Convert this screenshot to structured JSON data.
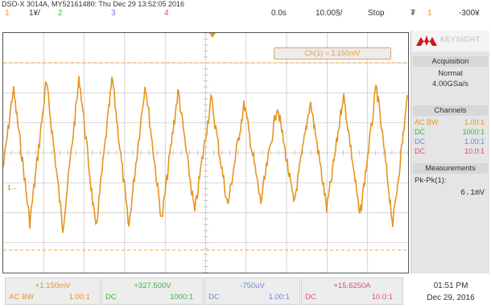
{
  "header": {
    "device_line": "DSO-X 3014A, MY52161480: Thu Dec 29 13:52:05 2016",
    "channel_numbers": [
      "1",
      "2",
      "3",
      "4"
    ],
    "ch1_scale": "1¥/",
    "time_offset": "0.0s",
    "time_scale": "10.00§/",
    "run_state": "Stop",
    "trigger_icon": "₮",
    "trigger_channel": "1",
    "trigger_level": "-300¥"
  },
  "screen": {
    "cursor_label": "Ch(1) = 1.150mV",
    "channel_marker": "1→"
  },
  "panel": {
    "brand": "KEYSIGHT",
    "acquisition_title": "Acquisition",
    "acquisition_mode": "Normal",
    "sample_rate": "4.00GSa/s",
    "channels_title": "Channels",
    "channels": [
      {
        "coupling": "AC BW",
        "probe": "1.00:1",
        "color": "#e6941e"
      },
      {
        "coupling": "DC",
        "probe": "1000:1",
        "color": "#3fb53f"
      },
      {
        "coupling": "DC",
        "probe": "1.00:1",
        "color": "#6f86d6"
      },
      {
        "coupling": "DC",
        "probe": "10.0:1",
        "color": "#d94a8a"
      }
    ],
    "measurements_title": "Measurements",
    "meas_label": "Pk-Pk(1):",
    "meas_value": "6.1mV"
  },
  "bottom": {
    "channels": [
      {
        "value": "+1.150mV",
        "coupling": "AC BW",
        "probe": "1.00:1",
        "color": "#e6941e"
      },
      {
        "value": "+327.500V",
        "coupling": "DC",
        "probe": "1000:1",
        "color": "#3fb53f"
      },
      {
        "value": "-750uV",
        "coupling": "DC",
        "probe": "1.00:1",
        "color": "#6f86d6"
      },
      {
        "value": "+15.6250A",
        "coupling": "DC",
        "probe": "10.0:1",
        "color": "#d94a8a"
      }
    ],
    "time": "01:51 PM",
    "date": "Dec 29, 2016"
  }
}
